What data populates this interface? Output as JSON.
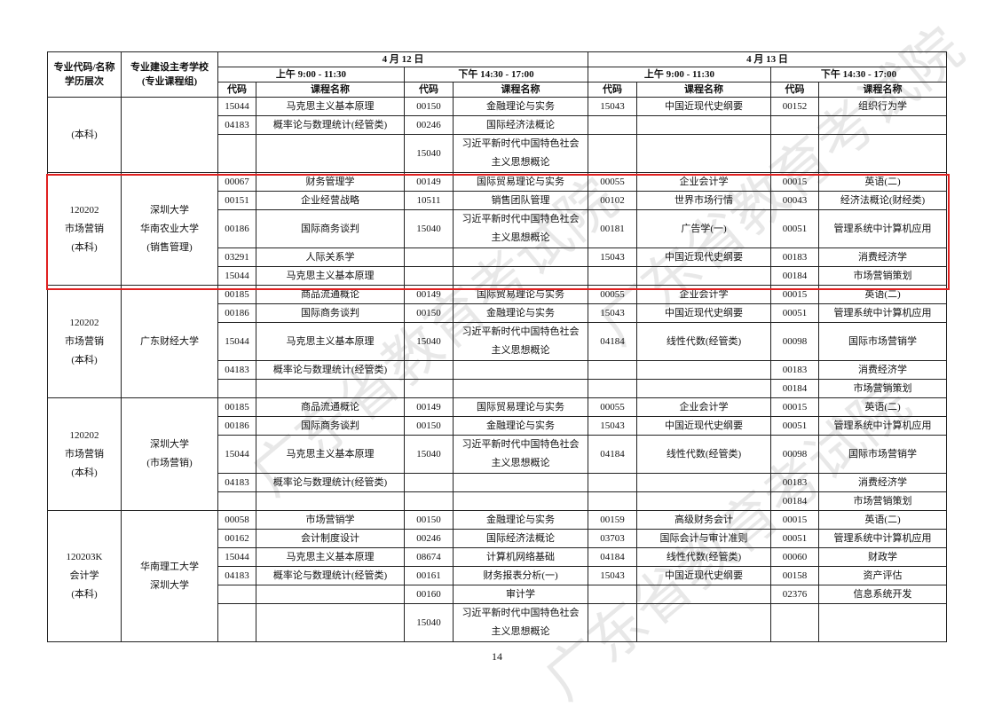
{
  "header": {
    "col_major": "专业代码/名称",
    "col_major_2": "学历层次",
    "col_school": "专业建设主考学校",
    "col_school_2": "(专业课程组)",
    "days": [
      {
        "date": "4 月 12 日",
        "am": "上午 9:00 - 11:30",
        "pm": "下午 14:30 - 17:00"
      },
      {
        "date": "4 月 13 日",
        "am": "上午 9:00 - 11:30",
        "pm": "下午 14:30 - 17:00"
      }
    ],
    "code_label": "代码",
    "name_label": "课程名称"
  },
  "sections": [
    {
      "major": "(本科)",
      "school": "",
      "highlighted": false,
      "rows": [
        [
          "15044",
          "马克思主义基本原理",
          "00150",
          "金融理论与实务",
          "15043",
          "中国近现代史纲要",
          "00152",
          "组织行为学"
        ],
        [
          "04183",
          "概率论与数理统计(经管类)",
          "00246",
          "国际经济法概论",
          "",
          "",
          "",
          ""
        ],
        [
          "",
          "",
          "15040",
          "习近平新时代中国特色社会主义思想概论",
          "",
          "",
          "",
          ""
        ]
      ]
    },
    {
      "major": "120202\n市场营销\n(本科)",
      "school": "深圳大学\n华南农业大学\n(销售管理)",
      "highlighted": true,
      "rows": [
        [
          "00067",
          "财务管理学",
          "00149",
          "国际贸易理论与实务",
          "00055",
          "企业会计学",
          "00015",
          "英语(二)"
        ],
        [
          "00151",
          "企业经营战略",
          "10511",
          "销售团队管理",
          "00102",
          "世界市场行情",
          "00043",
          "经济法概论(财经类)"
        ],
        [
          "00186",
          "国际商务谈判",
          "15040",
          "习近平新时代中国特色社会主义思想概论",
          "00181",
          "广告学(一)",
          "00051",
          "管理系统中计算机应用"
        ],
        [
          "03291",
          "人际关系学",
          "",
          "",
          "15043",
          "中国近现代史纲要",
          "00183",
          "消费经济学"
        ],
        [
          "15044",
          "马克思主义基本原理",
          "",
          "",
          "",
          "",
          "00184",
          "市场营销策划"
        ]
      ]
    },
    {
      "major": "120202\n市场营销\n(本科)",
      "school": "广东财经大学",
      "highlighted": false,
      "rows": [
        [
          "00185",
          "商品流通概论",
          "00149",
          "国际贸易理论与实务",
          "00055",
          "企业会计学",
          "00015",
          "英语(二)"
        ],
        [
          "00186",
          "国际商务谈判",
          "00150",
          "金融理论与实务",
          "15043",
          "中国近现代史纲要",
          "00051",
          "管理系统中计算机应用"
        ],
        [
          "15044",
          "马克思主义基本原理",
          "15040",
          "习近平新时代中国特色社会主义思想概论",
          "04184",
          "线性代数(经管类)",
          "00098",
          "国际市场营销学"
        ],
        [
          "04183",
          "概率论与数理统计(经管类)",
          "",
          "",
          "",
          "",
          "00183",
          "消费经济学"
        ],
        [
          "",
          "",
          "",
          "",
          "",
          "",
          "00184",
          "市场营销策划"
        ]
      ]
    },
    {
      "major": "120202\n市场营销\n(本科)",
      "school": "深圳大学\n(市场营销)",
      "highlighted": false,
      "rows": [
        [
          "00185",
          "商品流通概论",
          "00149",
          "国际贸易理论与实务",
          "00055",
          "企业会计学",
          "00015",
          "英语(二)"
        ],
        [
          "00186",
          "国际商务谈判",
          "00150",
          "金融理论与实务",
          "15043",
          "中国近现代史纲要",
          "00051",
          "管理系统中计算机应用"
        ],
        [
          "15044",
          "马克思主义基本原理",
          "15040",
          "习近平新时代中国特色社会主义思想概论",
          "04184",
          "线性代数(经管类)",
          "00098",
          "国际市场营销学"
        ],
        [
          "04183",
          "概率论与数理统计(经管类)",
          "",
          "",
          "",
          "",
          "00183",
          "消费经济学"
        ],
        [
          "",
          "",
          "",
          "",
          "",
          "",
          "00184",
          "市场营销策划"
        ]
      ]
    },
    {
      "major": "120203K\n会计学\n(本科)",
      "school": "华南理工大学\n深圳大学",
      "highlighted": false,
      "rows": [
        [
          "00058",
          "市场营销学",
          "00150",
          "金融理论与实务",
          "00159",
          "高级财务会计",
          "00015",
          "英语(二)"
        ],
        [
          "00162",
          "会计制度设计",
          "00246",
          "国际经济法概论",
          "03703",
          "国际会计与审计准则",
          "00051",
          "管理系统中计算机应用"
        ],
        [
          "15044",
          "马克思主义基本原理",
          "08674",
          "计算机网络基础",
          "04184",
          "线性代数(经管类)",
          "00060",
          "财政学"
        ],
        [
          "04183",
          "概率论与数理统计(经管类)",
          "00161",
          "财务报表分析(一)",
          "15043",
          "中国近现代史纲要",
          "00158",
          "资产评估"
        ],
        [
          "",
          "",
          "00160",
          "审计学",
          "",
          "",
          "02376",
          "信息系统开发"
        ],
        [
          "",
          "",
          "15040",
          "习近平新时代中国特色社会主义思想概论",
          "",
          "",
          "",
          ""
        ]
      ]
    }
  ],
  "page_number": "14",
  "watermark": "广东省教育考试院",
  "colors": {
    "highlight_border": "#e02020",
    "grid": "#222222"
  }
}
